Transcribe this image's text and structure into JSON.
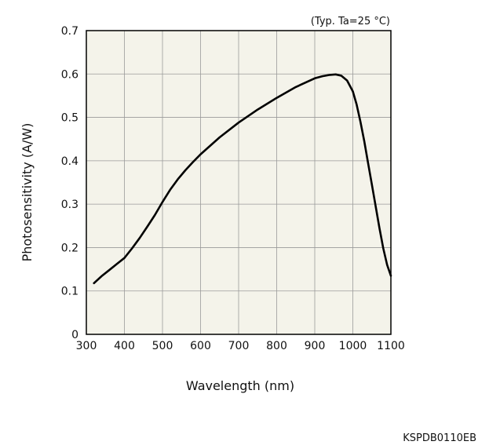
{
  "chart_data": {
    "type": "line",
    "annotation": "(Typ. Ta=25 °C)",
    "xlabel": "Wavelength (nm)",
    "ylabel": "Photosensitivity (A/W)",
    "xlim": [
      300,
      1100
    ],
    "ylim": [
      0,
      0.7
    ],
    "x_ticks": [
      "300",
      "400",
      "500",
      "600",
      "700",
      "800",
      "900",
      "1000",
      "1100"
    ],
    "y_ticks": [
      "0",
      "0.1",
      "0.2",
      "0.3",
      "0.4",
      "0.5",
      "0.6",
      "0.7"
    ],
    "grid": true,
    "legend": "none",
    "series": [
      {
        "x": [
          320,
          340,
          360,
          380,
          400,
          420,
          440,
          460,
          480,
          500,
          520,
          540,
          560,
          580,
          600,
          650,
          700,
          750,
          800,
          850,
          900,
          920,
          940,
          955,
          970,
          985,
          1000,
          1010,
          1020,
          1030,
          1040,
          1050,
          1060,
          1070,
          1080,
          1090,
          1100
        ],
        "y": [
          0.118,
          0.134,
          0.148,
          0.162,
          0.176,
          0.198,
          0.222,
          0.248,
          0.275,
          0.305,
          0.333,
          0.357,
          0.378,
          0.397,
          0.415,
          0.454,
          0.488,
          0.518,
          0.545,
          0.57,
          0.59,
          0.595,
          0.598,
          0.599,
          0.596,
          0.585,
          0.56,
          0.53,
          0.49,
          0.445,
          0.395,
          0.345,
          0.295,
          0.245,
          0.198,
          0.16,
          0.135
        ]
      }
    ]
  },
  "colors": {
    "plot_bg": "#f4f3ea",
    "grid": "#9a9a9a",
    "frame": "#000000",
    "line": "#000000"
  },
  "footer": {
    "code": "KSPDB0110EB"
  }
}
